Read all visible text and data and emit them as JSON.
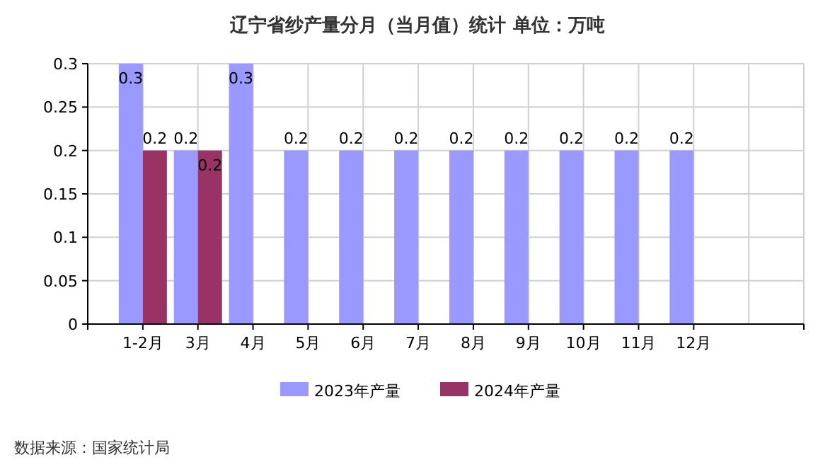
{
  "chart_data": {
    "type": "bar",
    "title": "辽宁省纱产量分月（当月值）统计 单位：万吨",
    "categories": [
      "1-2月",
      "3月",
      "4月",
      "5月",
      "6月",
      "7月",
      "8月",
      "9月",
      "10月",
      "11月",
      "12月"
    ],
    "series": [
      {
        "name": "2023年产量",
        "color": "#9999ff",
        "values": [
          0.3,
          0.2,
          0.3,
          0.2,
          0.2,
          0.2,
          0.2,
          0.2,
          0.2,
          0.2,
          0.2
        ]
      },
      {
        "name": "2024年产量",
        "color": "#993366",
        "values": [
          0.2,
          0.2,
          null,
          null,
          null,
          null,
          null,
          null,
          null,
          null,
          null
        ]
      }
    ],
    "ylim": [
      0,
      0.3
    ],
    "yticks": [
      0,
      0.05,
      0.1,
      0.15,
      0.2,
      0.25,
      0.3
    ],
    "grid": true,
    "data_labels": true,
    "legend": "bottom",
    "annotations": [
      "数据来源：国家统计局"
    ]
  }
}
